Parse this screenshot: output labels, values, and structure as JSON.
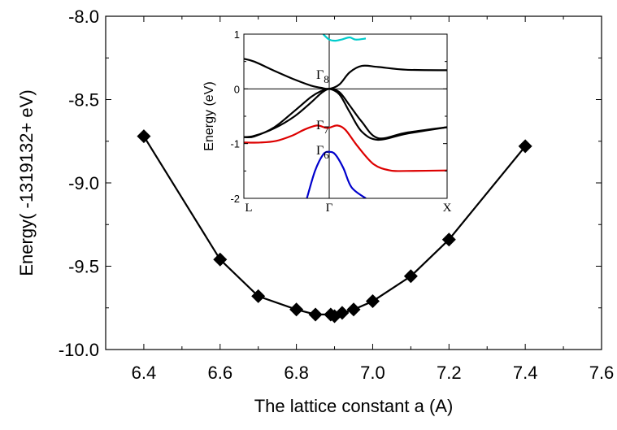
{
  "chart_data": [
    {
      "type": "line",
      "title": "",
      "xlabel": "The lattice constant a (A)",
      "ylabel": "Energy(   -1319132+ eV)",
      "xlim": [
        6.3,
        7.6
      ],
      "ylim": [
        -10.0,
        -8.0
      ],
      "xticks": [
        "6.4",
        "6.6",
        "6.8",
        "7.0",
        "7.2",
        "7.4",
        "7.6"
      ],
      "yticks": [
        "-8.0",
        "-8.5",
        "-9.0",
        "-9.5",
        "-10.0"
      ],
      "marker": "diamond",
      "color": "#000000",
      "series": [
        {
          "x": [
            6.4,
            6.6,
            6.7,
            6.8,
            6.85,
            6.89,
            6.9,
            6.92,
            6.95,
            7.0,
            7.1,
            7.2,
            7.4
          ],
          "y": [
            -8.72,
            -9.46,
            -9.68,
            -9.76,
            -9.79,
            -9.79,
            -9.8,
            -9.78,
            -9.76,
            -9.71,
            -9.56,
            -9.34,
            -8.78
          ]
        }
      ]
    },
    {
      "type": "line",
      "title": "",
      "ylabel": "Energy (eV)",
      "ylim": [
        -2,
        1
      ],
      "yticks": [
        "1",
        "0",
        "-1",
        "-2"
      ],
      "kpoint_labels": [
        "L",
        "Γ",
        "X"
      ],
      "band_labels": [
        {
          "base": "Γ",
          "sub": "8"
        },
        {
          "base": "Γ",
          "sub": "7"
        },
        {
          "base": "Γ",
          "sub": "6"
        }
      ],
      "series": [
        {
          "color": "#000000",
          "x": [
            0,
            0.05,
            0.15,
            0.25,
            0.33,
            0.38,
            0.42,
            0.47,
            0.52,
            0.58,
            0.66,
            0.8,
            1.0
          ],
          "y": [
            0.55,
            0.5,
            0.33,
            0.17,
            0.06,
            0.02,
            0.0,
            0.08,
            0.3,
            0.42,
            0.4,
            0.35,
            0.34
          ]
        },
        {
          "color": "#000000",
          "x": [
            0,
            0.05,
            0.15,
            0.25,
            0.33,
            0.38,
            0.42,
            0.47,
            0.52,
            0.58,
            0.66,
            0.8,
            1.0
          ],
          "y": [
            -0.88,
            -0.87,
            -0.7,
            -0.4,
            -0.15,
            -0.04,
            0.0,
            -0.1,
            -0.42,
            -0.78,
            -0.93,
            -0.82,
            -0.7
          ]
        },
        {
          "color": "#000000",
          "x": [
            0,
            0.05,
            0.15,
            0.25,
            0.33,
            0.38,
            0.42,
            0.47,
            0.52,
            0.58,
            0.66,
            0.8,
            1.0
          ],
          "y": [
            -0.88,
            -0.86,
            -0.72,
            -0.5,
            -0.25,
            -0.08,
            0.0,
            -0.06,
            -0.3,
            -0.6,
            -0.9,
            -0.8,
            -0.7
          ]
        },
        {
          "color": "#dd0000",
          "x": [
            0,
            0.08,
            0.16,
            0.24,
            0.3,
            0.36,
            0.4,
            0.42,
            0.46,
            0.5,
            0.56,
            0.64,
            0.72,
            0.8,
            1.0
          ],
          "y": [
            -0.98,
            -0.98,
            -0.95,
            -0.85,
            -0.74,
            -0.67,
            -0.71,
            -0.71,
            -0.67,
            -0.75,
            -1.05,
            -1.38,
            -1.49,
            -1.5,
            -1.49
          ]
        },
        {
          "color": "#0000cc",
          "x": [
            0.31,
            0.35,
            0.39,
            0.42,
            0.45,
            0.49,
            0.53,
            0.6
          ],
          "y": [
            -2.0,
            -1.5,
            -1.2,
            -1.15,
            -1.2,
            -1.45,
            -1.8,
            -2.0
          ]
        },
        {
          "color": "#00cccc",
          "x": [
            0.39,
            0.42,
            0.45,
            0.48,
            0.52,
            0.55,
            0.6
          ],
          "y": [
            1.0,
            0.9,
            0.88,
            0.9,
            0.94,
            0.9,
            0.92
          ]
        }
      ]
    }
  ]
}
